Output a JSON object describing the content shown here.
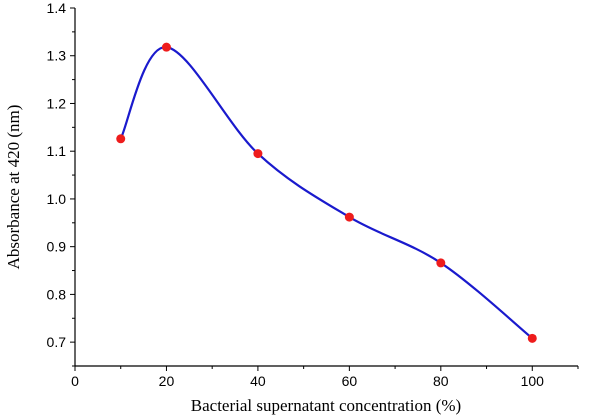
{
  "chart_data": {
    "type": "line",
    "xlabel": "Bacterial supernatant concentration (%)",
    "ylabel": "Absorbance at 420 (nm)",
    "xlim": [
      0,
      110
    ],
    "ylim": [
      0.65,
      1.4
    ],
    "x_ticks": [
      0,
      20,
      40,
      60,
      80,
      100
    ],
    "y_ticks": [
      0.7,
      0.8,
      0.9,
      1.0,
      1.1,
      1.2,
      1.3,
      1.4
    ],
    "x_tick_labels": [
      "0",
      "20",
      "40",
      "60",
      "80",
      "100"
    ],
    "y_tick_labels": [
      "0.7",
      "0.8",
      "0.9",
      "1.0",
      "1.1",
      "1.2",
      "1.3",
      "1.4"
    ],
    "grid": false,
    "smooth": true,
    "series": [
      {
        "x": [
          10,
          20,
          40,
          60,
          80,
          100
        ],
        "y": [
          1.126,
          1.318,
          1.095,
          0.962,
          0.866,
          0.708
        ],
        "line_color": "#1a1acd",
        "marker_color": "#ee1c1c"
      }
    ]
  }
}
